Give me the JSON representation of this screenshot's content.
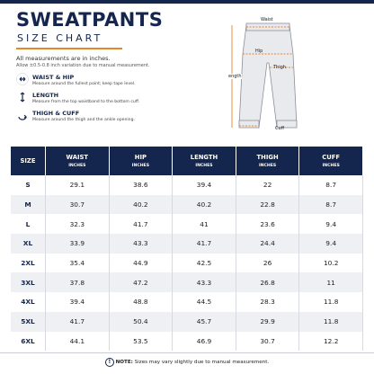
{
  "header": {
    "title": "SWEATPANTS",
    "subtitle": "SIZE CHART",
    "note": "All measurements are in inches.",
    "variation": "Allow ±0.5-0.8 inch variation due to manual measurement."
  },
  "guide": [
    {
      "heading": "WAIST & HIP",
      "text": "Measure around the fullest point; keep tape level."
    },
    {
      "heading": "LENGTH",
      "text": "Measure from the top waistband to the bottom cuff."
    },
    {
      "heading": "THIGH & CUFF",
      "text": "Measure around the thigh and the ankle opening."
    }
  ],
  "diagram": {
    "labels": [
      "Waist",
      "Hip",
      "Thigh",
      "ength",
      "Cuff"
    ]
  },
  "table": {
    "columns": [
      {
        "label": "SIZE"
      },
      {
        "label": "WAIST",
        "unit": "INCHES"
      },
      {
        "label": "HIP",
        "unit": "INCHES"
      },
      {
        "label": "LENGTH",
        "unit": "INCHES"
      },
      {
        "label": "THIGH",
        "unit": "INCHES"
      },
      {
        "label": "CUFF",
        "unit": "INCHES"
      }
    ],
    "rows": [
      [
        "S",
        29.1,
        38.6,
        39.4,
        22,
        8.7
      ],
      [
        "M",
        30.7,
        40.2,
        40.2,
        22.8,
        8.7
      ],
      [
        "L",
        32.3,
        41.7,
        41,
        23.6,
        9.4
      ],
      [
        "XL",
        33.9,
        43.3,
        41.7,
        24.4,
        9.4
      ],
      [
        "2XL",
        35.4,
        44.9,
        42.5,
        26,
        10.2
      ],
      [
        "3XL",
        37.8,
        47.2,
        43.3,
        26.8,
        11
      ],
      [
        "4XL",
        39.4,
        48.8,
        44.5,
        28.3,
        11.8
      ],
      [
        "5XL",
        41.7,
        50.4,
        45.7,
        29.9,
        11.8
      ],
      [
        "6XL",
        44.1,
        53.5,
        46.9,
        30.7,
        12.2
      ]
    ]
  },
  "footer": {
    "prefix": "NOTE:",
    "text": "Sizes may vary slightly due to manual measurement."
  }
}
